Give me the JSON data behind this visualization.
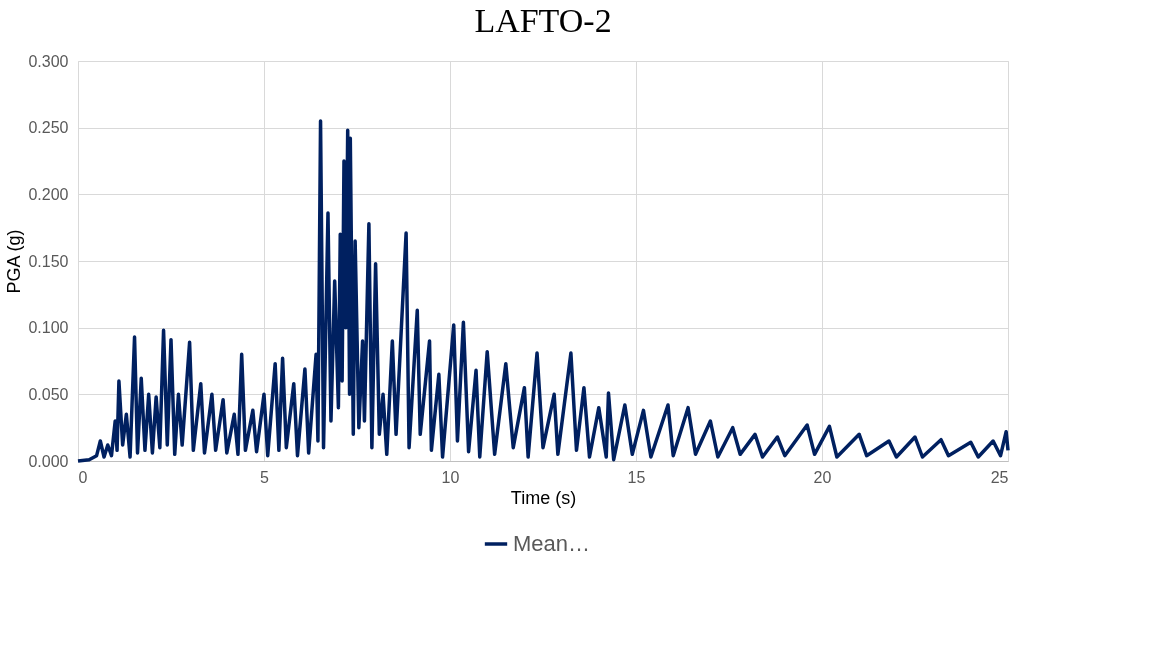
{
  "chart_data": {
    "type": "line",
    "title": "LAFTO-2",
    "xlabel": "Time (s)",
    "ylabel": "PGA (g)",
    "xlim": [
      0,
      25
    ],
    "xticks": [
      0,
      5,
      10,
      15,
      20,
      25
    ],
    "ylim": [
      0,
      0.3
    ],
    "yticks": [
      {
        "value": 0,
        "label": "0.000"
      },
      {
        "value": 0.05,
        "label": "0.050"
      },
      {
        "value": 0.1,
        "label": "0.100"
      },
      {
        "value": 0.15,
        "label": "0.150"
      },
      {
        "value": 0.2,
        "label": "0.200"
      },
      {
        "value": 0.25,
        "label": "0.250"
      },
      {
        "value": 0.3,
        "label": "0.300"
      }
    ],
    "grid": true,
    "legend": "bottom",
    "marker": "none",
    "line_style": "solid",
    "series": [
      {
        "name": "Mean…",
        "color": "#002060",
        "x": [
          0,
          0.3,
          0.5,
          0.6,
          0.7,
          0.8,
          0.9,
          1.0,
          1.05,
          1.1,
          1.2,
          1.3,
          1.4,
          1.52,
          1.6,
          1.7,
          1.8,
          1.9,
          2.0,
          2.1,
          2.2,
          2.3,
          2.4,
          2.5,
          2.6,
          2.7,
          2.8,
          3.0,
          3.1,
          3.3,
          3.4,
          3.6,
          3.7,
          3.9,
          4.0,
          4.2,
          4.3,
          4.4,
          4.5,
          4.7,
          4.8,
          5.0,
          5.1,
          5.3,
          5.4,
          5.5,
          5.6,
          5.8,
          5.9,
          6.1,
          6.2,
          6.4,
          6.45,
          6.52,
          6.6,
          6.72,
          6.8,
          6.9,
          7.0,
          7.05,
          7.1,
          7.15,
          7.2,
          7.25,
          7.3,
          7.32,
          7.4,
          7.45,
          7.55,
          7.65,
          7.7,
          7.82,
          7.9,
          8.0,
          8.1,
          8.2,
          8.3,
          8.45,
          8.55,
          8.82,
          8.9,
          9.12,
          9.2,
          9.45,
          9.5,
          9.7,
          9.8,
          10.1,
          10.2,
          10.36,
          10.5,
          10.7,
          10.8,
          11.0,
          11.2,
          11.5,
          11.7,
          12.0,
          12.1,
          12.34,
          12.5,
          12.8,
          12.9,
          13.25,
          13.4,
          13.6,
          13.75,
          14.0,
          14.2,
          14.26,
          14.4,
          14.7,
          14.9,
          15.2,
          15.4,
          15.86,
          16.0,
          16.4,
          16.6,
          17.0,
          17.2,
          17.6,
          17.8,
          18.2,
          18.4,
          18.8,
          19.0,
          19.6,
          19.8,
          20.2,
          20.4,
          21.0,
          21.2,
          21.8,
          22.0,
          22.5,
          22.7,
          23.2,
          23.4,
          24.0,
          24.2,
          24.6,
          24.8,
          24.95,
          25
        ],
        "values": [
          0,
          0.001,
          0.004,
          0.015,
          0.003,
          0.012,
          0.004,
          0.03,
          0.008,
          0.06,
          0.012,
          0.035,
          0.003,
          0.093,
          0.006,
          0.062,
          0.008,
          0.05,
          0.006,
          0.048,
          0.01,
          0.098,
          0.012,
          0.091,
          0.005,
          0.05,
          0.012,
          0.089,
          0.008,
          0.058,
          0.006,
          0.05,
          0.008,
          0.046,
          0.006,
          0.035,
          0.005,
          0.08,
          0.008,
          0.038,
          0.007,
          0.05,
          0.004,
          0.073,
          0.008,
          0.077,
          0.01,
          0.058,
          0.004,
          0.069,
          0.006,
          0.08,
          0.015,
          0.255,
          0.01,
          0.186,
          0.03,
          0.135,
          0.04,
          0.17,
          0.06,
          0.225,
          0.1,
          0.248,
          0.05,
          0.242,
          0.02,
          0.165,
          0.025,
          0.09,
          0.03,
          0.178,
          0.01,
          0.148,
          0.02,
          0.05,
          0.005,
          0.09,
          0.02,
          0.171,
          0.01,
          0.113,
          0.02,
          0.09,
          0.008,
          0.065,
          0.003,
          0.102,
          0.015,
          0.104,
          0.007,
          0.068,
          0.003,
          0.082,
          0.005,
          0.073,
          0.01,
          0.055,
          0.003,
          0.081,
          0.01,
          0.05,
          0.005,
          0.081,
          0.008,
          0.055,
          0.003,
          0.04,
          0.003,
          0.051,
          0.001,
          0.042,
          0.005,
          0.038,
          0.003,
          0.042,
          0.004,
          0.04,
          0.005,
          0.03,
          0.003,
          0.025,
          0.005,
          0.02,
          0.003,
          0.018,
          0.004,
          0.027,
          0.005,
          0.026,
          0.003,
          0.02,
          0.004,
          0.015,
          0.003,
          0.018,
          0.003,
          0.016,
          0.004,
          0.014,
          0.003,
          0.015,
          0.004,
          0.022,
          0.008
        ]
      }
    ]
  }
}
